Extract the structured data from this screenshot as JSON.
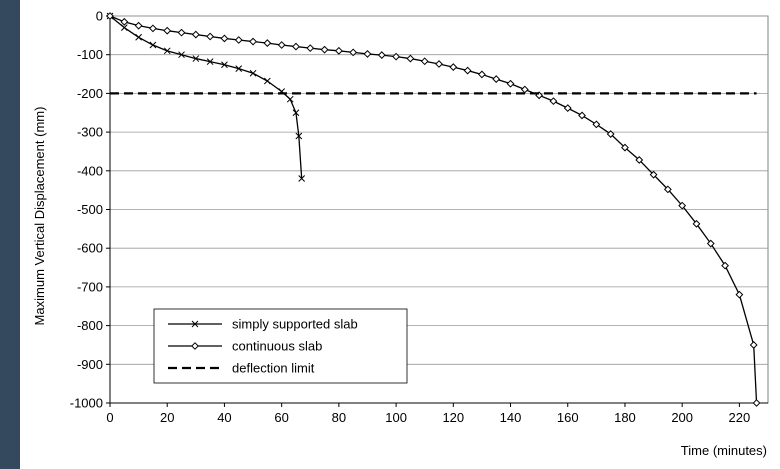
{
  "chart_data": {
    "type": "line",
    "xlabel": "Time (minutes)",
    "ylabel": "Maximum Vertical Displacement (mm)",
    "xlim": [
      0,
      230
    ],
    "ylim": [
      -1000,
      0
    ],
    "x_ticks": [
      0,
      20,
      40,
      60,
      80,
      100,
      120,
      140,
      160,
      180,
      200,
      220
    ],
    "y_ticks": [
      0,
      -100,
      -200,
      -300,
      -400,
      -500,
      -600,
      -700,
      -800,
      -900,
      -1000
    ],
    "grid": "y-major",
    "legend_position": "bottom-left",
    "series": [
      {
        "name": "simply supported slab",
        "marker": "x",
        "style": "solid",
        "x": [
          0,
          5,
          10,
          15,
          20,
          25,
          30,
          35,
          40,
          45,
          50,
          55,
          60,
          63,
          65,
          66,
          67
        ],
        "y": [
          0,
          -30,
          -55,
          -75,
          -90,
          -100,
          -110,
          -118,
          -126,
          -136,
          -148,
          -168,
          -195,
          -215,
          -250,
          -310,
          -420
        ]
      },
      {
        "name": "continuous slab",
        "marker": "diamond",
        "style": "solid",
        "x": [
          0,
          5,
          10,
          15,
          20,
          25,
          30,
          35,
          40,
          45,
          50,
          55,
          60,
          65,
          70,
          75,
          80,
          85,
          90,
          95,
          100,
          105,
          110,
          115,
          120,
          125,
          130,
          135,
          140,
          145,
          150,
          155,
          160,
          165,
          170,
          175,
          180,
          185,
          190,
          195,
          200,
          205,
          210,
          215,
          220,
          225,
          226
        ],
        "y": [
          0,
          -15,
          -25,
          -32,
          -38,
          -43,
          -48,
          -53,
          -58,
          -62,
          -66,
          -70,
          -75,
          -79,
          -83,
          -87,
          -90,
          -94,
          -98,
          -101,
          -105,
          -110,
          -117,
          -124,
          -132,
          -141,
          -151,
          -163,
          -175,
          -190,
          -205,
          -220,
          -238,
          -257,
          -280,
          -305,
          -340,
          -372,
          -410,
          -448,
          -490,
          -537,
          -588,
          -645,
          -720,
          -850,
          -1000
        ]
      },
      {
        "name": "deflection limit",
        "marker": "none",
        "style": "dashed",
        "x": [
          0,
          226
        ],
        "y": [
          -200,
          -200
        ]
      }
    ]
  }
}
